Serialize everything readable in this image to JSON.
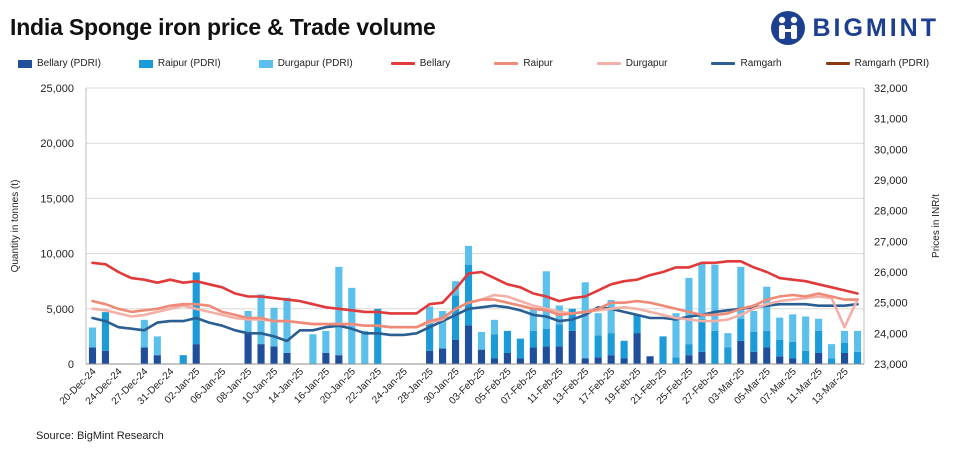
{
  "header": {
    "title": "India Sponge iron price & Trade volume",
    "logo_text": "BIGMINT"
  },
  "source": "Source: BigMint Research",
  "colors": {
    "bellary_pdri": "#1f4e9a",
    "raipur_pdri": "#1b9bd7",
    "durgapur_pdri": "#5bc0eb",
    "bellary": "#e03a3a",
    "raipur": "#ef8a78",
    "durgapur": "#f2b0a6",
    "ramgarh": "#2b5f93",
    "ramgarh_pdri": "#8b3a0f",
    "grid": "#d9d9d9",
    "logo": "#1c3f8f"
  },
  "chart_data": {
    "type": "bar",
    "title": "India Sponge iron price & Trade volume",
    "ylabel_left": "Quantity in tonnes (t)",
    "ylabel_right": "Prices in INR/t",
    "ylim_left": [
      0,
      25000
    ],
    "ylim_right": [
      23000,
      32000
    ],
    "yticks_left": [
      "0",
      "5,000",
      "10,000",
      "15,000",
      "20,000",
      "25,000"
    ],
    "yticks_right": [
      "23,000",
      "24,000",
      "25,000",
      "26,000",
      "27,000",
      "28,000",
      "29,000",
      "30,000",
      "31,000",
      "32,000"
    ],
    "grid": "horizontal",
    "legend_position": "top",
    "legend": [
      "Bellary (PDRI)",
      "Raipur (PDRI)",
      "Durgapur (PDRI)",
      "Bellary",
      "Raipur",
      "Durgapur",
      "Ramgarh",
      "Ramgarh (PDRI)"
    ],
    "xtick_labels": [
      "20-Dec-24",
      "24-Dec-24",
      "27-Dec-24",
      "31-Dec-24",
      "02-Jan-25",
      "06-Jan-25",
      "08-Jan-25",
      "10-Jan-25",
      "14-Jan-25",
      "16-Jan-25",
      "20-Jan-25",
      "22-Jan-25",
      "24-Jan-25",
      "28-Jan-25",
      "30-Jan-25",
      "03-Feb-25",
      "05-Feb-25",
      "07-Feb-25",
      "11-Feb-25",
      "13-Feb-25",
      "17-Feb-25",
      "19-Feb-25",
      "21-Feb-25",
      "25-Feb-25",
      "27-Feb-25",
      "03-Mar-25",
      "05-Mar-25",
      "07-Mar-25",
      "11-Mar-25",
      "13-Mar-25"
    ],
    "n_points": 60,
    "bar_series": [
      {
        "name": "Bellary (PDRI)",
        "color_key": "bellary_pdri",
        "values": [
          1500,
          1200,
          0,
          0,
          1500,
          800,
          0,
          0,
          1800,
          0,
          0,
          0,
          2800,
          1800,
          1600,
          1000,
          0,
          0,
          1000,
          800,
          0,
          0,
          0,
          0,
          0,
          0,
          1200,
          1400,
          2200,
          3500,
          1300,
          500,
          1000,
          500,
          1500,
          1600,
          1600,
          3000,
          500,
          600,
          800,
          500,
          2800,
          700,
          0,
          0,
          800,
          1100,
          0,
          0,
          2100,
          1100,
          1500,
          700,
          500,
          0,
          1000,
          0,
          1000,
          0
        ]
      },
      {
        "name": "Raipur (PDRI)",
        "color_key": "raipur_pdri",
        "values": [
          0,
          3500,
          0,
          0,
          0,
          0,
          0,
          800,
          6500,
          0,
          0,
          0,
          0,
          0,
          0,
          0,
          0,
          0,
          0,
          0,
          0,
          0,
          5000,
          0,
          0,
          0,
          2500,
          0,
          4000,
          5500,
          0,
          2200,
          2000,
          1800,
          1500,
          1600,
          2000,
          2000,
          0,
          2000,
          2000,
          1600,
          1600,
          0,
          2500,
          600,
          1000,
          3000,
          3000,
          1500,
          2000,
          1800,
          1500,
          1500,
          1500,
          1200,
          2000,
          500,
          900,
          1100
        ]
      },
      {
        "name": "Durgapur (PDRI)",
        "color_key": "durgapur_pdri",
        "values": [
          1800,
          0,
          0,
          0,
          2500,
          1700,
          0,
          0,
          0,
          0,
          0,
          0,
          2000,
          4500,
          3500,
          5000,
          0,
          2700,
          2000,
          8000,
          6900,
          3000,
          0,
          0,
          0,
          0,
          1500,
          3400,
          1300,
          1700,
          1600,
          1300,
          0,
          0,
          2000,
          5200,
          1700,
          0,
          6900,
          2000,
          3000,
          0,
          0,
          0,
          0,
          4000,
          6000,
          5000,
          6000,
          1300,
          4700,
          1900,
          4000,
          2000,
          2500,
          3100,
          1100,
          1300,
          1100,
          1900
        ]
      }
    ],
    "line_series": [
      {
        "name": "Bellary",
        "color_key": "bellary",
        "values": [
          26300,
          26250,
          26000,
          25800,
          25750,
          25650,
          25750,
          25650,
          25700,
          25600,
          25500,
          25300,
          25200,
          25200,
          25150,
          25100,
          25050,
          24950,
          24850,
          24800,
          24750,
          24700,
          24700,
          24650,
          24650,
          24650,
          24950,
          25000,
          25450,
          25950,
          26000,
          25800,
          25600,
          25500,
          25300,
          25200,
          25050,
          25150,
          25200,
          25400,
          25600,
          25700,
          25750,
          25900,
          26000,
          26150,
          26150,
          26300,
          26300,
          26350,
          26350,
          26150,
          26000,
          25800,
          25750,
          25700,
          25600,
          25500,
          25400,
          25300
        ]
      },
      {
        "name": "Raipur",
        "color_key": "raipur",
        "values": [
          25050,
          24950,
          24800,
          24700,
          24750,
          24800,
          24900,
          24950,
          24950,
          24900,
          24700,
          24600,
          24500,
          24500,
          24400,
          24400,
          24350,
          24300,
          24300,
          24300,
          24300,
          24250,
          24250,
          24200,
          24200,
          24200,
          24400,
          24500,
          24800,
          25000,
          25100,
          25100,
          25000,
          24900,
          24800,
          24750,
          24600,
          24650,
          24700,
          24800,
          25000,
          25000,
          25050,
          25000,
          24900,
          24800,
          24700,
          24600,
          24600,
          24650,
          24800,
          24900,
          25100,
          25200,
          25250,
          25200,
          25300,
          25200,
          25100,
          25100
        ]
      },
      {
        "name": "Durgapur",
        "color_key": "durgapur",
        "values": [
          24800,
          24750,
          24650,
          24550,
          24600,
          24700,
          24800,
          24900,
          24800,
          24700,
          24600,
          24500,
          24450,
          24450,
          24400,
          24400,
          24350,
          24300,
          24300,
          24300,
          24300,
          24250,
          24250,
          24200,
          24200,
          24200,
          24350,
          24450,
          24800,
          25000,
          25100,
          25250,
          25200,
          25050,
          24900,
          24800,
          24700,
          24650,
          24700,
          24750,
          24800,
          24850,
          24800,
          24700,
          24600,
          24500,
          24450,
          24400,
          24400,
          24450,
          24600,
          24800,
          24950,
          25050,
          25100,
          25150,
          25200,
          25150,
          24200,
          25100
        ]
      },
      {
        "name": "Ramgarh",
        "color_key": "ramgarh",
        "values": [
          24500,
          24400,
          24200,
          24150,
          24100,
          24350,
          24400,
          24400,
          24500,
          24350,
          24250,
          24100,
          24000,
          24000,
          23900,
          23750,
          24100,
          24100,
          24200,
          24250,
          24150,
          24000,
          24000,
          23950,
          23950,
          24000,
          24200,
          24400,
          24600,
          24800,
          24850,
          24900,
          24850,
          24750,
          24600,
          24550,
          24400,
          24450,
          24600,
          24850,
          24800,
          24700,
          24600,
          24500,
          24500,
          24450,
          24550,
          24600,
          24700,
          24750,
          24800,
          24850,
          24900,
          24950,
          24950,
          24950,
          24900,
          24900,
          24900,
          24950
        ]
      },
      {
        "name": "Ramgarh (PDRI)",
        "color_key": "ramgarh_pdri",
        "values": []
      }
    ]
  }
}
